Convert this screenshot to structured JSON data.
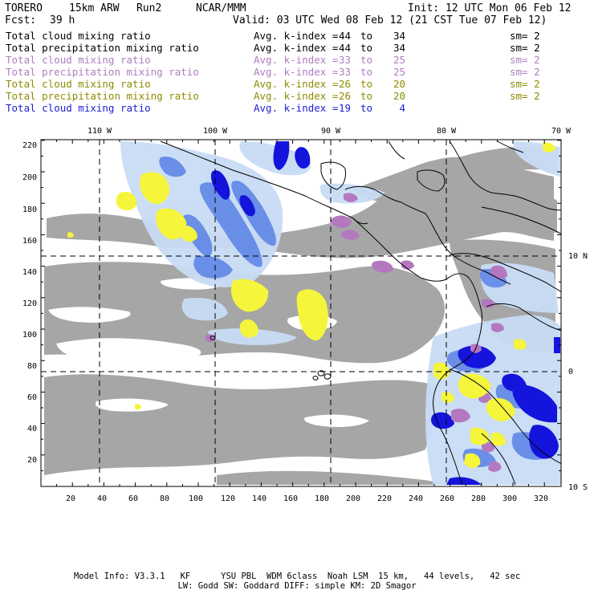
{
  "header": {
    "model": "TORERO",
    "resolution": "15km ARW",
    "run": "Run2",
    "center": "NCAR/MMM",
    "init": "Init: 12 UTC Mon 06 Feb 12",
    "fcst_label": "Fcst:",
    "fcst_value": "39 h",
    "valid": "Valid: 03 UTC Wed 08 Feb 12 (21 CST Tue 07 Feb 12)"
  },
  "legend": [
    {
      "name": "Total cloud mixing ratio",
      "avg": "Avg. k-index =",
      "v1": "44",
      "to": "to",
      "v2": "34",
      "sm": "sm= 2",
      "color": "#000000"
    },
    {
      "name": "Total precipitation mixing ratio",
      "avg": "Avg. k-index =",
      "v1": "44",
      "to": "to",
      "v2": "34",
      "sm": "sm= 2",
      "color": "#000000"
    },
    {
      "name": "Total cloud mixing ratio",
      "avg": "Avg. k-index =",
      "v1": "33",
      "to": "to",
      "v2": "25",
      "sm": "sm= 2",
      "color": "#b07cc0"
    },
    {
      "name": "Total precipitation mixing ratio",
      "avg": "Avg. k-index =",
      "v1": "33",
      "to": "to",
      "v2": "25",
      "sm": "sm= 2",
      "color": "#b07cc0"
    },
    {
      "name": "Total cloud mixing ratio",
      "avg": "Avg. k-index =",
      "v1": "26",
      "to": "to",
      "v2": "20",
      "sm": "sm= 2",
      "color": "#8c8c00"
    },
    {
      "name": "Total precipitation mixing ratio",
      "avg": "Avg. k-index =",
      "v1": "26",
      "to": "to",
      "v2": "20",
      "sm": "sm= 2",
      "color": "#8c8c00"
    },
    {
      "name": "Total cloud mixing ratio",
      "avg": "Avg. k-index =",
      "v1": "19",
      "to": "to",
      "v2": "4",
      "sm": "",
      "color": "#1e1ed2"
    }
  ],
  "map": {
    "lon_labels": [
      "110 W",
      "100 W",
      "90 W",
      "80 W",
      "70 W"
    ],
    "lat_labels": [
      "10 N",
      "0",
      "10 S"
    ],
    "y_ticks": [
      "220",
      "200",
      "180",
      "160",
      "140",
      "120",
      "100",
      "80",
      "60",
      "40",
      "20"
    ],
    "x_ticks": [
      "20",
      "40",
      "60",
      "80",
      "100",
      "120",
      "140",
      "160",
      "180",
      "200",
      "220",
      "240",
      "260",
      "280",
      "300",
      "320"
    ],
    "colors": {
      "gray": "#a6a6a6",
      "light_blue": "#c8dcf5",
      "mid_blue": "#5a82e6",
      "dark_blue": "#1414dc",
      "purple": "#b478c0",
      "yellow": "#f5f53c",
      "border": "#000000"
    }
  },
  "footer": {
    "line1": "Model Info: V3.3.1   KF      YSU PBL  WDM 6class  Noah LSM  15 km,   44 levels,   42 sec",
    "line2": "LW: Godd SW: Goddard DIFF: simple KM: 2D Smagor"
  }
}
